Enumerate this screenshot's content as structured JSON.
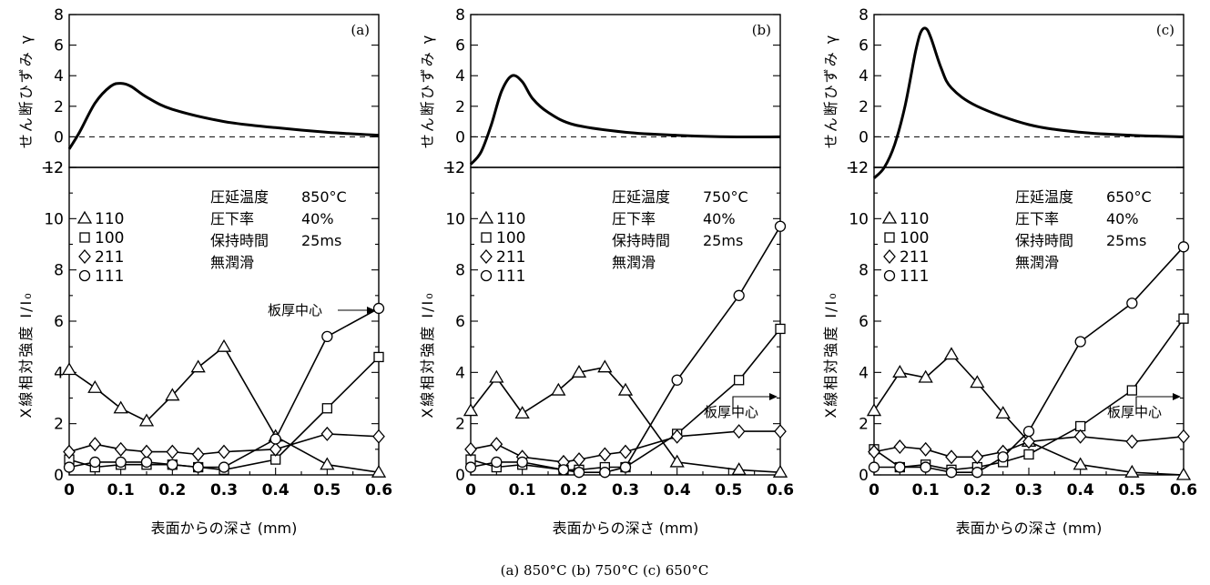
{
  "figure": {
    "caption": "(a) 850°C (b) 750°C (c) 650°C"
  },
  "chart_data": [
    {
      "type": "line",
      "tag": "(a)",
      "top": {
        "ylabel": "せん断ひずみ γ",
        "ylim": [
          -2,
          8
        ],
        "yticks": [
          "8",
          "6",
          "4",
          "2",
          "0",
          "−2"
        ],
        "x": [
          0,
          0.02,
          0.05,
          0.08,
          0.1,
          0.12,
          0.15,
          0.2,
          0.3,
          0.4,
          0.5,
          0.6
        ],
        "y": [
          -0.8,
          0.3,
          2.2,
          3.3,
          3.5,
          3.3,
          2.6,
          1.8,
          1.0,
          0.6,
          0.3,
          0.1
        ]
      },
      "bottom": {
        "ylabel": "X線相対強度 I/I₀",
        "xlabel": "表面からの深さ (mm)",
        "ylim": [
          0,
          12
        ],
        "xlim": [
          0,
          0.6
        ],
        "yticks": [
          "12",
          "10",
          "8",
          "6",
          "4",
          "2",
          "0"
        ],
        "xticks": [
          "0",
          "0.1",
          "0.2",
          "0.3",
          "0.4",
          "0.5",
          "0.6"
        ],
        "series": [
          {
            "name": "110",
            "marker": "triangle",
            "x": [
              0,
              0.05,
              0.1,
              0.15,
              0.2,
              0.25,
              0.3,
              0.4,
              0.5,
              0.6
            ],
            "values": [
              4.1,
              3.4,
              2.6,
              2.1,
              3.1,
              4.2,
              5.0,
              1.5,
              0.4,
              0.1
            ]
          },
          {
            "name": "100",
            "marker": "square",
            "x": [
              0,
              0.05,
              0.1,
              0.15,
              0.2,
              0.25,
              0.3,
              0.4,
              0.5,
              0.6
            ],
            "values": [
              0.6,
              0.3,
              0.4,
              0.4,
              0.4,
              0.3,
              0.2,
              0.6,
              2.6,
              4.6
            ]
          },
          {
            "name": "211",
            "marker": "diamond",
            "x": [
              0,
              0.05,
              0.1,
              0.15,
              0.2,
              0.25,
              0.3,
              0.4,
              0.5,
              0.6
            ],
            "values": [
              0.9,
              1.2,
              1.0,
              0.9,
              0.9,
              0.8,
              0.9,
              1.0,
              1.6,
              1.5
            ]
          },
          {
            "name": "111",
            "marker": "circle",
            "x": [
              0,
              0.05,
              0.1,
              0.15,
              0.2,
              0.25,
              0.3,
              0.4,
              0.5,
              0.6
            ],
            "values": [
              0.3,
              0.5,
              0.5,
              0.5,
              0.4,
              0.3,
              0.3,
              1.4,
              5.4,
              6.5
            ]
          }
        ],
        "conditions": [
          {
            "label": "圧延温度",
            "value": "850°C"
          },
          {
            "label": "圧下率",
            "value": "40%"
          },
          {
            "label": "保持時間",
            "value": "25ms"
          },
          {
            "label": "無潤滑",
            "value": ""
          }
        ],
        "center_label": "板厚中心"
      }
    },
    {
      "type": "line",
      "tag": "(b)",
      "top": {
        "ylabel": "せん断ひずみ γ",
        "ylim": [
          -2,
          8
        ],
        "yticks": [
          "8",
          "6",
          "4",
          "2",
          "0",
          "−2"
        ],
        "x": [
          0,
          0.02,
          0.04,
          0.06,
          0.08,
          0.1,
          0.12,
          0.15,
          0.2,
          0.3,
          0.4,
          0.5,
          0.6
        ],
        "y": [
          -1.8,
          -1.0,
          0.8,
          3.0,
          4.0,
          3.6,
          2.5,
          1.6,
          0.8,
          0.3,
          0.1,
          0.0,
          0.0
        ]
      },
      "bottom": {
        "ylabel": "X線相対強度 I/I₀",
        "xlabel": "表面からの深さ (mm)",
        "ylim": [
          0,
          12
        ],
        "xlim": [
          0,
          0.6
        ],
        "yticks": [
          "12",
          "10",
          "8",
          "6",
          "4",
          "2",
          "0"
        ],
        "xticks": [
          "0",
          "0.1",
          "0.2",
          "0.3",
          "0.4",
          "0.5",
          "0.6"
        ],
        "series": [
          {
            "name": "110",
            "marker": "triangle",
            "x": [
              0,
              0.05,
              0.1,
              0.17,
              0.21,
              0.26,
              0.3,
              0.4,
              0.52,
              0.6
            ],
            "values": [
              2.5,
              3.8,
              2.4,
              3.3,
              4.0,
              4.2,
              3.3,
              0.5,
              0.2,
              0.1
            ]
          },
          {
            "name": "100",
            "marker": "square",
            "x": [
              0,
              0.05,
              0.1,
              0.18,
              0.21,
              0.26,
              0.3,
              0.4,
              0.52,
              0.6
            ],
            "values": [
              0.6,
              0.3,
              0.4,
              0.2,
              0.2,
              0.3,
              0.3,
              1.6,
              3.7,
              5.7
            ]
          },
          {
            "name": "211",
            "marker": "diamond",
            "x": [
              0,
              0.05,
              0.1,
              0.18,
              0.21,
              0.26,
              0.3,
              0.4,
              0.52,
              0.6
            ],
            "values": [
              1.0,
              1.2,
              0.7,
              0.5,
              0.6,
              0.8,
              0.9,
              1.5,
              1.7,
              1.7
            ]
          },
          {
            "name": "111",
            "marker": "circle",
            "x": [
              0,
              0.05,
              0.1,
              0.18,
              0.21,
              0.26,
              0.3,
              0.4,
              0.52,
              0.6
            ],
            "values": [
              0.3,
              0.5,
              0.5,
              0.2,
              0.1,
              0.1,
              0.3,
              3.7,
              7.0,
              9.7
            ]
          }
        ],
        "conditions": [
          {
            "label": "圧延温度",
            "value": "750°C"
          },
          {
            "label": "圧下率",
            "value": "40%"
          },
          {
            "label": "保持時間",
            "value": "25ms"
          },
          {
            "label": "無潤滑",
            "value": ""
          }
        ],
        "center_label": "板厚中心"
      }
    },
    {
      "type": "line",
      "tag": "(c)",
      "top": {
        "ylabel": "せん断ひずみ γ",
        "ylim": [
          -2,
          8
        ],
        "yticks": [
          "8",
          "6",
          "4",
          "2",
          "0",
          "−2"
        ],
        "x": [
          0,
          0.02,
          0.04,
          0.06,
          0.08,
          0.09,
          0.1,
          0.11,
          0.13,
          0.15,
          0.2,
          0.3,
          0.4,
          0.5,
          0.6
        ],
        "y": [
          -2.7,
          -2.0,
          -0.5,
          2.0,
          5.5,
          6.8,
          7.1,
          6.5,
          4.5,
          3.2,
          2.0,
          0.8,
          0.3,
          0.1,
          0.0
        ]
      },
      "bottom": {
        "ylabel": "X線相対強度 I/I₀",
        "xlabel": "表面からの深さ (mm)",
        "ylim": [
          0,
          12
        ],
        "xlim": [
          0,
          0.6
        ],
        "yticks": [
          "12",
          "10",
          "8",
          "6",
          "4",
          "2",
          "0"
        ],
        "xticks": [
          "0",
          "0.1",
          "0.2",
          "0.3",
          "0.4",
          "0.5",
          "0.6"
        ],
        "series": [
          {
            "name": "110",
            "marker": "triangle",
            "x": [
              0,
              0.05,
              0.1,
              0.15,
              0.2,
              0.25,
              0.3,
              0.4,
              0.5,
              0.6
            ],
            "values": [
              2.5,
              4.0,
              3.8,
              4.7,
              3.6,
              2.4,
              1.3,
              0.4,
              0.1,
              0.0
            ]
          },
          {
            "name": "100",
            "marker": "square",
            "x": [
              0,
              0.05,
              0.1,
              0.15,
              0.2,
              0.25,
              0.3,
              0.4,
              0.5,
              0.6
            ],
            "values": [
              1.0,
              0.3,
              0.4,
              0.2,
              0.3,
              0.5,
              0.8,
              1.9,
              3.3,
              6.1
            ]
          },
          {
            "name": "211",
            "marker": "diamond",
            "x": [
              0,
              0.05,
              0.1,
              0.15,
              0.2,
              0.25,
              0.3,
              0.4,
              0.5,
              0.6
            ],
            "values": [
              0.9,
              1.1,
              1.0,
              0.7,
              0.7,
              0.9,
              1.3,
              1.5,
              1.3,
              1.5
            ]
          },
          {
            "name": "111",
            "marker": "circle",
            "x": [
              0,
              0.05,
              0.1,
              0.15,
              0.2,
              0.25,
              0.3,
              0.4,
              0.5,
              0.6
            ],
            "values": [
              0.3,
              0.3,
              0.3,
              0.1,
              0.1,
              0.7,
              1.7,
              5.2,
              6.7,
              8.9
            ]
          }
        ],
        "conditions": [
          {
            "label": "圧延温度",
            "value": "650°C"
          },
          {
            "label": "圧下率",
            "value": "40%"
          },
          {
            "label": "保持時間",
            "value": "25ms"
          },
          {
            "label": "無潤滑",
            "value": ""
          }
        ],
        "center_label": "板厚中心"
      }
    }
  ]
}
